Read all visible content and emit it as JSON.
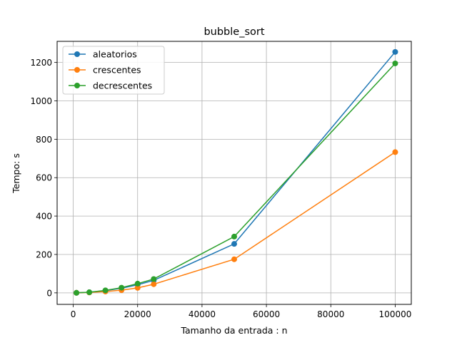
{
  "chart_data": {
    "type": "line",
    "title": "bubble_sort",
    "xlabel": "Tamanho da entrada : n",
    "ylabel": "Tempo: s",
    "x": [
      1000,
      5000,
      10000,
      15000,
      20000,
      25000,
      50000,
      100000
    ],
    "xlim": [
      -5000,
      105000
    ],
    "ylim": [
      -60,
      1310
    ],
    "xticks": [
      0,
      20000,
      40000,
      60000,
      80000,
      100000
    ],
    "xtick_labels": [
      "0",
      "20000",
      "40000",
      "60000",
      "80000",
      "100000"
    ],
    "yticks": [
      0,
      200,
      400,
      600,
      800,
      1000,
      1200
    ],
    "ytick_labels": [
      "0",
      "200",
      "400",
      "600",
      "800",
      "1000",
      "1200"
    ],
    "grid": true,
    "legend_position": "top-left",
    "series": [
      {
        "name": "aleatorios",
        "color": "#1f77b4",
        "values": [
          0.1,
          3,
          12,
          24,
          42,
          65,
          255,
          1255
        ]
      },
      {
        "name": "crescentes",
        "color": "#ff7f0e",
        "values": [
          0.1,
          2,
          7,
          14,
          26,
          45,
          175,
          733
        ]
      },
      {
        "name": "decrescentes",
        "color": "#2ca02c",
        "values": [
          0.1,
          3,
          13,
          27,
          48,
          72,
          293,
          1195
        ]
      }
    ]
  }
}
